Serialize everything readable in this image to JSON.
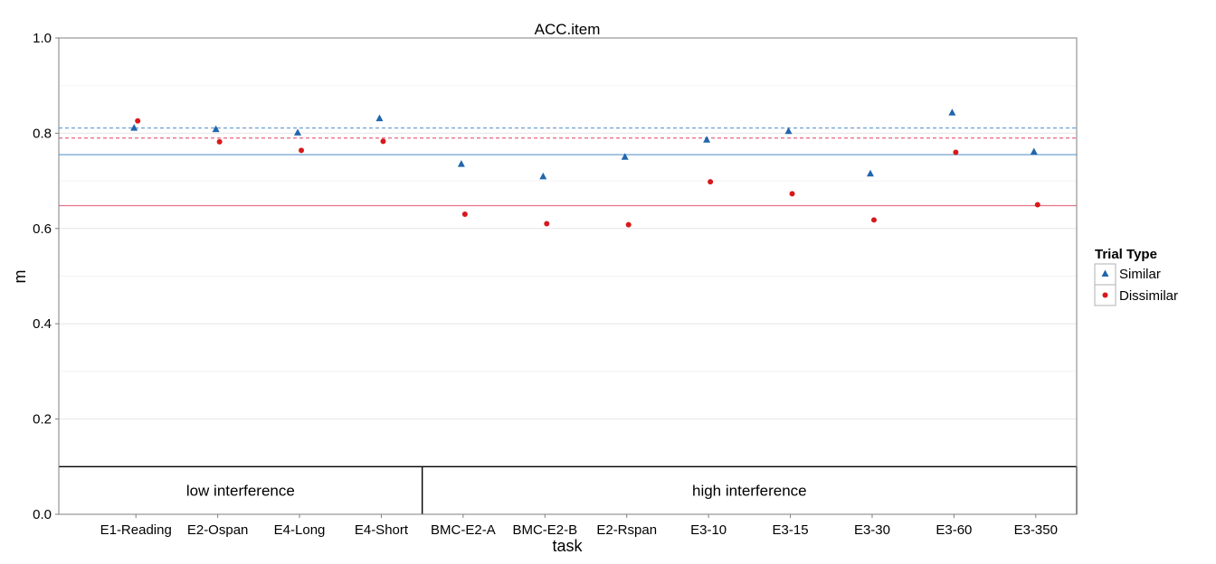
{
  "chart_data": {
    "type": "scatter",
    "title": "ACC.item",
    "xlabel": "task",
    "ylabel": "m",
    "ylim": [
      0,
      1
    ],
    "yticks": [
      "0.0",
      "0.2",
      "0.4",
      "0.6",
      "0.8",
      "1.0"
    ],
    "grid": true,
    "categories": [
      "E1-Reading",
      "E2-Ospan",
      "E4-Long",
      "E4-Short",
      "BMC-E2-A",
      "BMC-E2-B",
      "E2-Rspan",
      "E3-10",
      "E3-15",
      "E3-30",
      "E3-60",
      "E3-350"
    ],
    "groups": [
      {
        "label": "low interference",
        "from": 0,
        "to": 3
      },
      {
        "label": "high interference",
        "from": 4,
        "to": 11
      }
    ],
    "legend": {
      "title": "Trial Type",
      "position": "right"
    },
    "series": [
      {
        "name": "Similar",
        "marker": "triangle",
        "color": "#2166ac",
        "values": [
          0.811,
          0.808,
          0.801,
          0.831,
          0.735,
          0.709,
          0.75,
          0.786,
          0.804,
          0.715,
          0.843,
          0.761
        ]
      },
      {
        "name": "Dissimilar",
        "marker": "circle",
        "color": "#d7191c",
        "values": [
          0.826,
          0.782,
          0.764,
          0.783,
          0.63,
          0.61,
          0.608,
          0.698,
          0.673,
          0.618,
          0.76,
          0.65
        ]
      }
    ],
    "reference_lines": [
      {
        "value": 0.811,
        "color": "#6fa2d6",
        "style": "dashed"
      },
      {
        "value": 0.79,
        "color": "#e8748a",
        "style": "dashed"
      },
      {
        "value": 0.755,
        "color": "#6fa2d6",
        "style": "solid"
      },
      {
        "value": 0.648,
        "color": "#e8748a",
        "style": "solid"
      }
    ]
  }
}
